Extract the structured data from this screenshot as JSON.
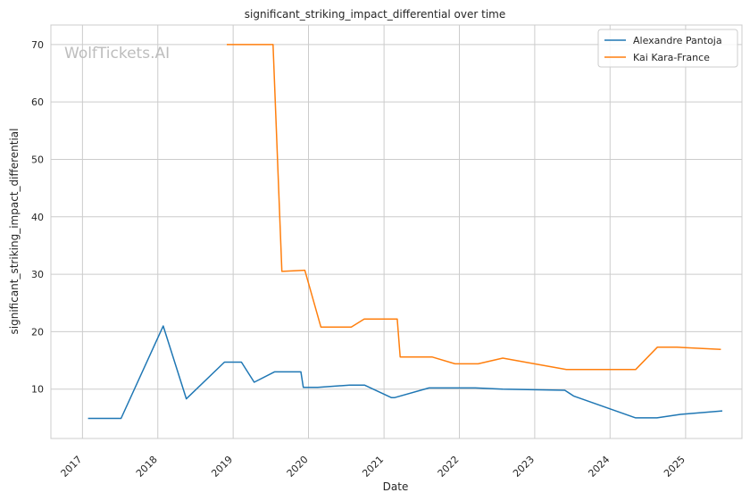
{
  "watermark": "WolfTickets.AI",
  "chart_data": {
    "type": "line",
    "title": "significant_striking_impact_differential over time",
    "xlabel": "Date",
    "ylabel": "significant_striking_impact_differential",
    "xlim": [
      "2016-08-01",
      "2025-10-01"
    ],
    "ylim": [
      1.4,
      73.4
    ],
    "x_ticks": [
      "2017",
      "2018",
      "2019",
      "2020",
      "2021",
      "2022",
      "2023",
      "2024",
      "2025"
    ],
    "y_ticks": [
      10,
      20,
      30,
      40,
      50,
      60,
      70
    ],
    "grid": true,
    "legend_position": "top-right",
    "series": [
      {
        "name": "Alexandre Pantoja",
        "color": "#1f77b4",
        "points": [
          [
            "2017-01-28",
            4.9
          ],
          [
            "2017-07-07",
            4.9
          ],
          [
            "2018-01-27",
            21.0
          ],
          [
            "2018-05-19",
            8.3
          ],
          [
            "2018-11-20",
            14.7
          ],
          [
            "2019-02-10",
            14.7
          ],
          [
            "2019-04-13",
            11.2
          ],
          [
            "2019-07-20",
            13.0
          ],
          [
            "2019-11-25",
            13.0
          ],
          [
            "2019-12-07",
            10.3
          ],
          [
            "2020-02-15",
            10.3
          ],
          [
            "2020-07-18",
            10.7
          ],
          [
            "2020-09-28",
            10.7
          ],
          [
            "2021-02-06",
            8.5
          ],
          [
            "2021-02-20",
            8.5
          ],
          [
            "2021-08-07",
            10.2
          ],
          [
            "2022-03-20",
            10.2
          ],
          [
            "2022-07-30",
            10.0
          ],
          [
            "2023-05-27",
            9.8
          ],
          [
            "2023-07-08",
            8.8
          ],
          [
            "2024-05-04",
            5.0
          ],
          [
            "2024-08-15",
            5.0
          ],
          [
            "2024-12-07",
            5.6
          ],
          [
            "2025-06-28",
            6.2
          ]
        ]
      },
      {
        "name": "Kai Kara-France",
        "color": "#ff7f0e",
        "points": [
          [
            "2018-12-01",
            70.0
          ],
          [
            "2019-07-13",
            70.0
          ],
          [
            "2019-08-25",
            30.5
          ],
          [
            "2019-12-14",
            30.7
          ],
          [
            "2020-03-01",
            20.8
          ],
          [
            "2020-07-26",
            20.8
          ],
          [
            "2020-09-27",
            22.2
          ],
          [
            "2021-03-06",
            22.2
          ],
          [
            "2021-03-20",
            15.6
          ],
          [
            "2021-08-21",
            15.6
          ],
          [
            "2021-12-11",
            14.4
          ],
          [
            "2022-04-02",
            14.4
          ],
          [
            "2022-07-30",
            15.4
          ],
          [
            "2023-01-15",
            14.3
          ],
          [
            "2023-06-03",
            13.4
          ],
          [
            "2024-05-04",
            13.4
          ],
          [
            "2024-08-17",
            17.3
          ],
          [
            "2024-11-20",
            17.3
          ],
          [
            "2025-06-21",
            16.9
          ]
        ]
      }
    ]
  }
}
